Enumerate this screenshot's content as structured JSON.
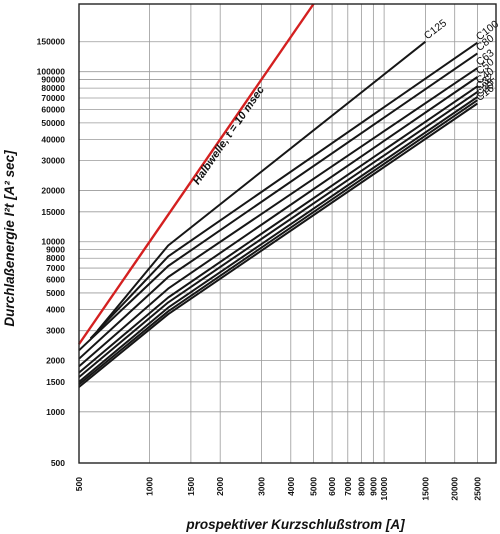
{
  "chart_data": {
    "type": "line",
    "x_scale": "log",
    "y_scale": "log",
    "xlabel": "prospektiver Kurzschlußstrom [A]",
    "ylabel": "Durchlaßenergie I²t [A² sec]",
    "xlim": [
      500,
      30000
    ],
    "ylim": [
      500,
      250000
    ],
    "grid": true,
    "x_ticks": [
      {
        "value": 500,
        "label": "500"
      },
      {
        "value": 1000,
        "label": "1000"
      },
      {
        "value": 1500,
        "label": "1500"
      },
      {
        "value": 2000,
        "label": "2000"
      },
      {
        "value": 3000,
        "label": "3000"
      },
      {
        "value": 4000,
        "label": "4000"
      },
      {
        "value": 5000,
        "label": "5000"
      },
      {
        "value": 6000,
        "label": "6000"
      },
      {
        "value": 7000,
        "label": "7000"
      },
      {
        "value": 8000,
        "label": "8000"
      },
      {
        "value": 9000,
        "label": "9000"
      },
      {
        "value": 10000,
        "label": "10000"
      },
      {
        "value": 15000,
        "label": "15000"
      },
      {
        "value": 20000,
        "label": "20000"
      },
      {
        "value": 25000,
        "label": "25000"
      }
    ],
    "y_ticks": [
      {
        "value": 500,
        "label": "500"
      },
      {
        "value": 1000,
        "label": "1000"
      },
      {
        "value": 1500,
        "label": "1500"
      },
      {
        "value": 2000,
        "label": "2000"
      },
      {
        "value": 3000,
        "label": "3000"
      },
      {
        "value": 4000,
        "label": "4000"
      },
      {
        "value": 5000,
        "label": "5000"
      },
      {
        "value": 6000,
        "label": "6000"
      },
      {
        "value": 7000,
        "label": "7000"
      },
      {
        "value": 8000,
        "label": "8000"
      },
      {
        "value": 9000,
        "label": "9000"
      },
      {
        "value": 10000,
        "label": "10000"
      },
      {
        "value": 15000,
        "label": "15000"
      },
      {
        "value": 20000,
        "label": "20000"
      },
      {
        "value": 30000,
        "label": "30000"
      },
      {
        "value": 40000,
        "label": "40000"
      },
      {
        "value": 50000,
        "label": "50000"
      },
      {
        "value": 60000,
        "label": "60000"
      },
      {
        "value": 70000,
        "label": "70000"
      },
      {
        "value": 80000,
        "label": "80000"
      },
      {
        "value": 90000,
        "label": "90000"
      },
      {
        "value": 100000,
        "label": "100000"
      },
      {
        "value": 150000,
        "label": "150000"
      }
    ],
    "reference_line": {
      "label": "Halbwelle, t = 10 msec",
      "color": "#d42020",
      "x": [
        500,
        5000
      ],
      "y": [
        2500,
        250000
      ]
    },
    "series": [
      {
        "name": "C125",
        "x": [
          600,
          1200,
          15000
        ],
        "y": [
          3000,
          9500,
          150000
        ]
      },
      {
        "name": "C100",
        "x": [
          560,
          1200,
          25000
        ],
        "y": [
          2700,
          8200,
          148000
        ]
      },
      {
        "name": "C80",
        "x": [
          500,
          1200,
          25000
        ],
        "y": [
          2300,
          7200,
          128000
        ]
      },
      {
        "name": "C63",
        "x": [
          500,
          1200,
          25000
        ],
        "y": [
          2050,
          6200,
          105000
        ]
      },
      {
        "name": "C50",
        "x": [
          500,
          1200,
          25000
        ],
        "y": [
          1850,
          5300,
          93000
        ]
      },
      {
        "name": "C40",
        "x": [
          500,
          1200,
          25000
        ],
        "y": [
          1700,
          4700,
          82000
        ]
      },
      {
        "name": "C32",
        "x": [
          500,
          1200,
          25000
        ],
        "y": [
          1600,
          4400,
          76000
        ]
      },
      {
        "name": "C25",
        "x": [
          500,
          1200,
          25000
        ],
        "y": [
          1500,
          4100,
          71000
        ]
      },
      {
        "name": "C20",
        "x": [
          500,
          1200,
          25000
        ],
        "y": [
          1450,
          3900,
          68000
        ]
      },
      {
        "name": "C16",
        "x": [
          500,
          1200,
          25000
        ],
        "y": [
          1400,
          3750,
          65000
        ]
      }
    ]
  }
}
